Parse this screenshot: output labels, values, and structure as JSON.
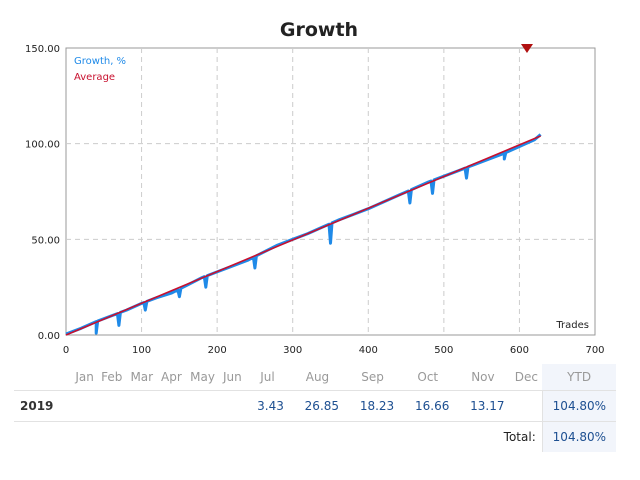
{
  "chart_data": {
    "type": "line",
    "title": "Growth",
    "x_axis_corner_label": "Trades",
    "xlim": [
      0,
      700
    ],
    "ylim": [
      0,
      150
    ],
    "x_ticks": [
      "0",
      "100",
      "200",
      "300",
      "400",
      "500",
      "600",
      "700"
    ],
    "y_ticks": [
      "0.00",
      "50.00",
      "100.00",
      "150.00"
    ],
    "grid": true,
    "legend_position": "top-left",
    "series": [
      {
        "name": "Growth, %",
        "color": "#1f8ae8",
        "x": [
          0,
          20,
          40,
          60,
          80,
          100,
          120,
          140,
          160,
          180,
          200,
          220,
          240,
          260,
          280,
          300,
          320,
          340,
          360,
          380,
          400,
          420,
          440,
          460,
          480,
          500,
          520,
          540,
          560,
          580,
          600,
          620,
          628
        ],
        "y": [
          0.5,
          3.5,
          7,
          10,
          13,
          16.5,
          19.5,
          22,
          26,
          30,
          33,
          36,
          39,
          43,
          47,
          50,
          53,
          56.5,
          60,
          63,
          66,
          69.5,
          73,
          76.5,
          80,
          83,
          86,
          89,
          92,
          95,
          98.5,
          102,
          104.8
        ]
      },
      {
        "name": "Average",
        "color": "#c8102e",
        "x": [
          0,
          628
        ],
        "y": [
          0,
          104
        ]
      }
    ],
    "dips": [
      {
        "x": 40,
        "y": 1
      },
      {
        "x": 70,
        "y": 5
      },
      {
        "x": 105,
        "y": 13
      },
      {
        "x": 150,
        "y": 20
      },
      {
        "x": 185,
        "y": 25
      },
      {
        "x": 250,
        "y": 35
      },
      {
        "x": 350,
        "y": 48
      },
      {
        "x": 455,
        "y": 69
      },
      {
        "x": 485,
        "y": 74
      },
      {
        "x": 530,
        "y": 82
      },
      {
        "x": 580,
        "y": 92
      }
    ],
    "marker": {
      "x": 610,
      "y": 150,
      "color": "#b01010"
    }
  },
  "table": {
    "months": [
      "Jan",
      "Feb",
      "Mar",
      "Apr",
      "May",
      "Jun",
      "Jul",
      "Aug",
      "Sep",
      "Oct",
      "Nov",
      "Dec"
    ],
    "ytd_header": "YTD",
    "rows": [
      {
        "year": "2019",
        "values": [
          "",
          "",
          "",
          "",
          "",
          "",
          "3.43",
          "26.85",
          "18.23",
          "16.66",
          "13.17",
          ""
        ],
        "ytd": "104.80%"
      }
    ],
    "total_label": "Total:",
    "total_value": "104.80%"
  }
}
